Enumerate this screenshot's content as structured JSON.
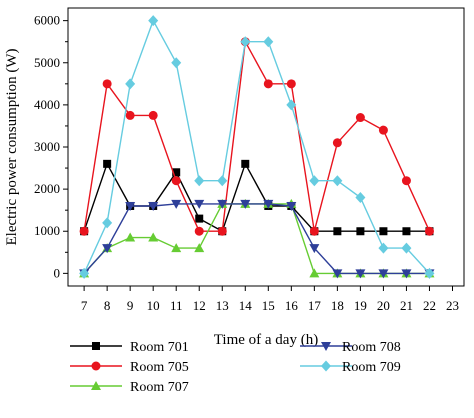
{
  "chart_data": {
    "type": "line",
    "xlabel": "Time of a day (h)",
    "ylabel": "Electric power consumption (W)",
    "xlim": [
      6.3,
      23.5
    ],
    "ylim": [
      -300,
      6300
    ],
    "x_ticks": [
      7,
      8,
      9,
      10,
      11,
      12,
      13,
      14,
      15,
      16,
      17,
      18,
      19,
      20,
      21,
      22,
      23
    ],
    "y_ticks": [
      0,
      1000,
      2000,
      3000,
      4000,
      5000,
      6000
    ],
    "legend_position": "bottom",
    "x": [
      7,
      8,
      9,
      10,
      11,
      12,
      13,
      14,
      15,
      16,
      17,
      18,
      19,
      20,
      21,
      22
    ],
    "series": [
      {
        "name": "Room 701",
        "color": "#000000",
        "marker": "square",
        "values": [
          1000,
          2600,
          1600,
          1600,
          2400,
          1300,
          1000,
          2600,
          1600,
          1600,
          1000,
          1000,
          1000,
          1000,
          1000,
          1000
        ]
      },
      {
        "name": "Room 705",
        "color": "#e8141e",
        "marker": "circle",
        "values": [
          1000,
          4500,
          3750,
          3750,
          2200,
          1000,
          1000,
          5500,
          4500,
          4500,
          1000,
          3100,
          3700,
          3400,
          2200,
          1000
        ]
      },
      {
        "name": "Room 707",
        "color": "#66cc33",
        "marker": "triangle-up",
        "values": [
          0,
          600,
          850,
          850,
          600,
          600,
          1650,
          1650,
          1650,
          1650,
          0,
          0,
          0,
          0,
          0,
          0
        ]
      },
      {
        "name": "Room 708",
        "color": "#2e3f99",
        "marker": "triangle-down",
        "values": [
          0,
          600,
          1600,
          1600,
          1650,
          1650,
          1650,
          1650,
          1650,
          1600,
          600,
          0,
          0,
          0,
          0,
          0
        ]
      },
      {
        "name": "Room 709",
        "color": "#66cce0",
        "marker": "diamond",
        "values": [
          0,
          1200,
          4500,
          6000,
          5000,
          2200,
          2200,
          5500,
          5500,
          4000,
          2200,
          2200,
          1800,
          600,
          600,
          0
        ]
      }
    ]
  }
}
